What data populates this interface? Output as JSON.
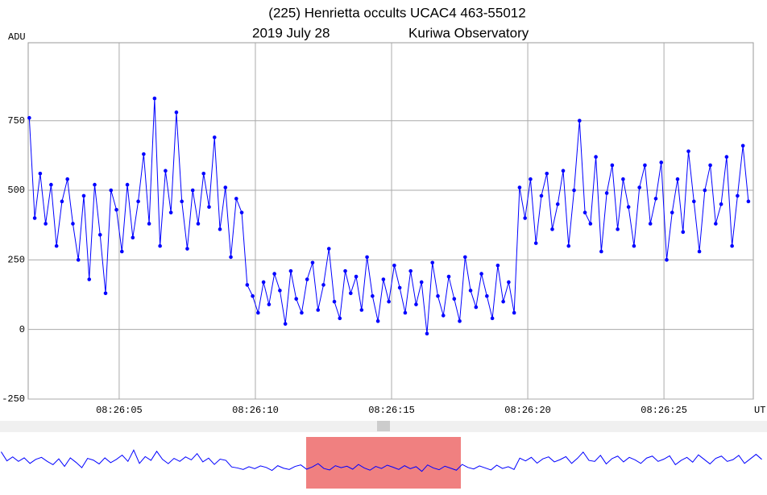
{
  "chart_data": {
    "type": "line",
    "title": "(225) Henrietta occults UCAC4 463-55012",
    "subtitle": "2019 July 28",
    "observatory": "Kuriwa Observatory",
    "y_label": "ADU",
    "x_label": "UT",
    "color": "#0000ff",
    "grid": true,
    "xlim": [
      1.66,
      28.28
    ],
    "ylim": [
      -250,
      1030
    ],
    "xticks": [
      {
        "value": 5,
        "label": "08:26:05"
      },
      {
        "value": 10,
        "label": "08:26:10"
      },
      {
        "value": 15,
        "label": "08:26:15"
      },
      {
        "value": 20,
        "label": "08:26:20"
      },
      {
        "value": 25,
        "label": "08:26:25"
      }
    ],
    "yticks": [
      -250,
      0,
      250,
      500,
      750
    ],
    "x": [
      1.7,
      1.9,
      2.1,
      2.3,
      2.5,
      2.7,
      2.9,
      3.1,
      3.3,
      3.5,
      3.7,
      3.9,
      4.1,
      4.3,
      4.5,
      4.7,
      4.9,
      5.1,
      5.3,
      5.5,
      5.7,
      5.9,
      6.1,
      6.3,
      6.5,
      6.7,
      6.9,
      7.1,
      7.3,
      7.5,
      7.7,
      7.9,
      8.1,
      8.3,
      8.5,
      8.7,
      8.9,
      9.1,
      9.3,
      9.5,
      9.7,
      9.9,
      10.1,
      10.3,
      10.5,
      10.7,
      10.9,
      11.1,
      11.3,
      11.5,
      11.7,
      11.9,
      12.1,
      12.3,
      12.5,
      12.7,
      12.9,
      13.1,
      13.3,
      13.5,
      13.7,
      13.9,
      14.1,
      14.3,
      14.5,
      14.7,
      14.9,
      15.1,
      15.3,
      15.5,
      15.7,
      15.9,
      16.1,
      16.3,
      16.5,
      16.7,
      16.9,
      17.1,
      17.3,
      17.5,
      17.7,
      17.9,
      18.1,
      18.3,
      18.5,
      18.7,
      18.9,
      19.1,
      19.3,
      19.5,
      19.7,
      19.9,
      20.1,
      20.3,
      20.5,
      20.7,
      20.9,
      21.1,
      21.3,
      21.5,
      21.7,
      21.9,
      22.1,
      22.3,
      22.5,
      22.7,
      22.9,
      23.1,
      23.3,
      23.5,
      23.7,
      23.9,
      24.1,
      24.3,
      24.5,
      24.7,
      24.9,
      25.1,
      25.3,
      25.5,
      25.7,
      25.9,
      26.1,
      26.3,
      26.5,
      26.7,
      26.9,
      27.1,
      27.3,
      27.5,
      27.7,
      27.9,
      28.1
    ],
    "values": [
      760,
      400,
      560,
      380,
      520,
      300,
      460,
      540,
      380,
      250,
      480,
      180,
      520,
      340,
      130,
      500,
      430,
      280,
      520,
      330,
      460,
      630,
      380,
      830,
      300,
      570,
      420,
      780,
      460,
      290,
      500,
      380,
      560,
      440,
      690,
      360,
      510,
      260,
      470,
      420,
      160,
      120,
      60,
      170,
      90,
      200,
      140,
      20,
      210,
      110,
      60,
      180,
      240,
      70,
      160,
      290,
      100,
      40,
      210,
      130,
      190,
      70,
      260,
      120,
      30,
      180,
      100,
      230,
      150,
      60,
      210,
      90,
      170,
      -15,
      240,
      120,
      50,
      190,
      110,
      30,
      260,
      140,
      80,
      200,
      120,
      40,
      230,
      100,
      170,
      60,
      510,
      400,
      540,
      310,
      480,
      560,
      360,
      450,
      570,
      300,
      500,
      750,
      420,
      380,
      620,
      280,
      490,
      590,
      360,
      540,
      440,
      300,
      510,
      590,
      380,
      470,
      600,
      250,
      420,
      540,
      350,
      640,
      460,
      280,
      500,
      590,
      380,
      450,
      620,
      300,
      480,
      660,
      460
    ]
  }
}
